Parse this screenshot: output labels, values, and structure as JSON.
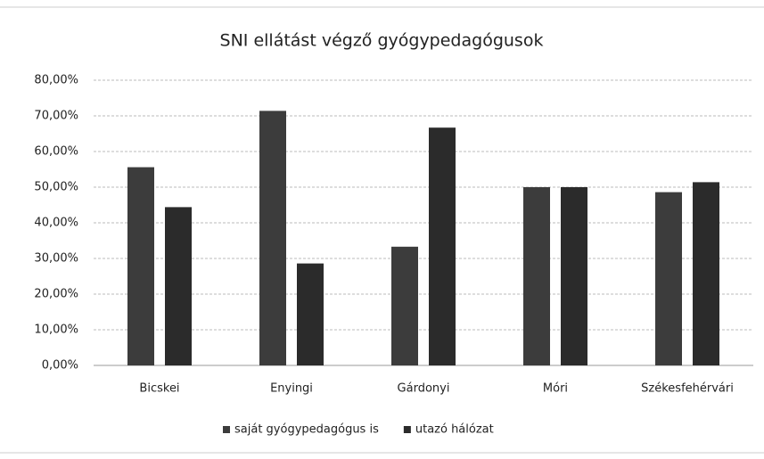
{
  "chart_data": {
    "type": "bar",
    "title": "SNI ellátást végző gyógypedagógusok",
    "categories": [
      "Bicskei",
      "Enyingi",
      "Gárdonyi",
      "Móri",
      "Székesfehérvári"
    ],
    "series": [
      {
        "name": "saját gyógypedagógus is",
        "color": "#3c3c3c",
        "values": [
          55.6,
          71.4,
          33.3,
          50.0,
          48.6
        ]
      },
      {
        "name": "utazó hálózat",
        "color": "#2b2b2b",
        "values": [
          44.4,
          28.6,
          66.7,
          50.0,
          51.4
        ]
      }
    ],
    "ylim": [
      0,
      80
    ],
    "yticks": [
      {
        "value": 0,
        "label": "0,00%"
      },
      {
        "value": 10,
        "label": "10,00%"
      },
      {
        "value": 20,
        "label": "20,00%"
      },
      {
        "value": 30,
        "label": "30,00%"
      },
      {
        "value": 40,
        "label": "40,00%"
      },
      {
        "value": 50,
        "label": "50,00%"
      },
      {
        "value": 60,
        "label": "60,00%"
      },
      {
        "value": 70,
        "label": "70,00%"
      },
      {
        "value": 80,
        "label": "80,00%"
      }
    ],
    "grid": true,
    "legend": "bottom"
  }
}
